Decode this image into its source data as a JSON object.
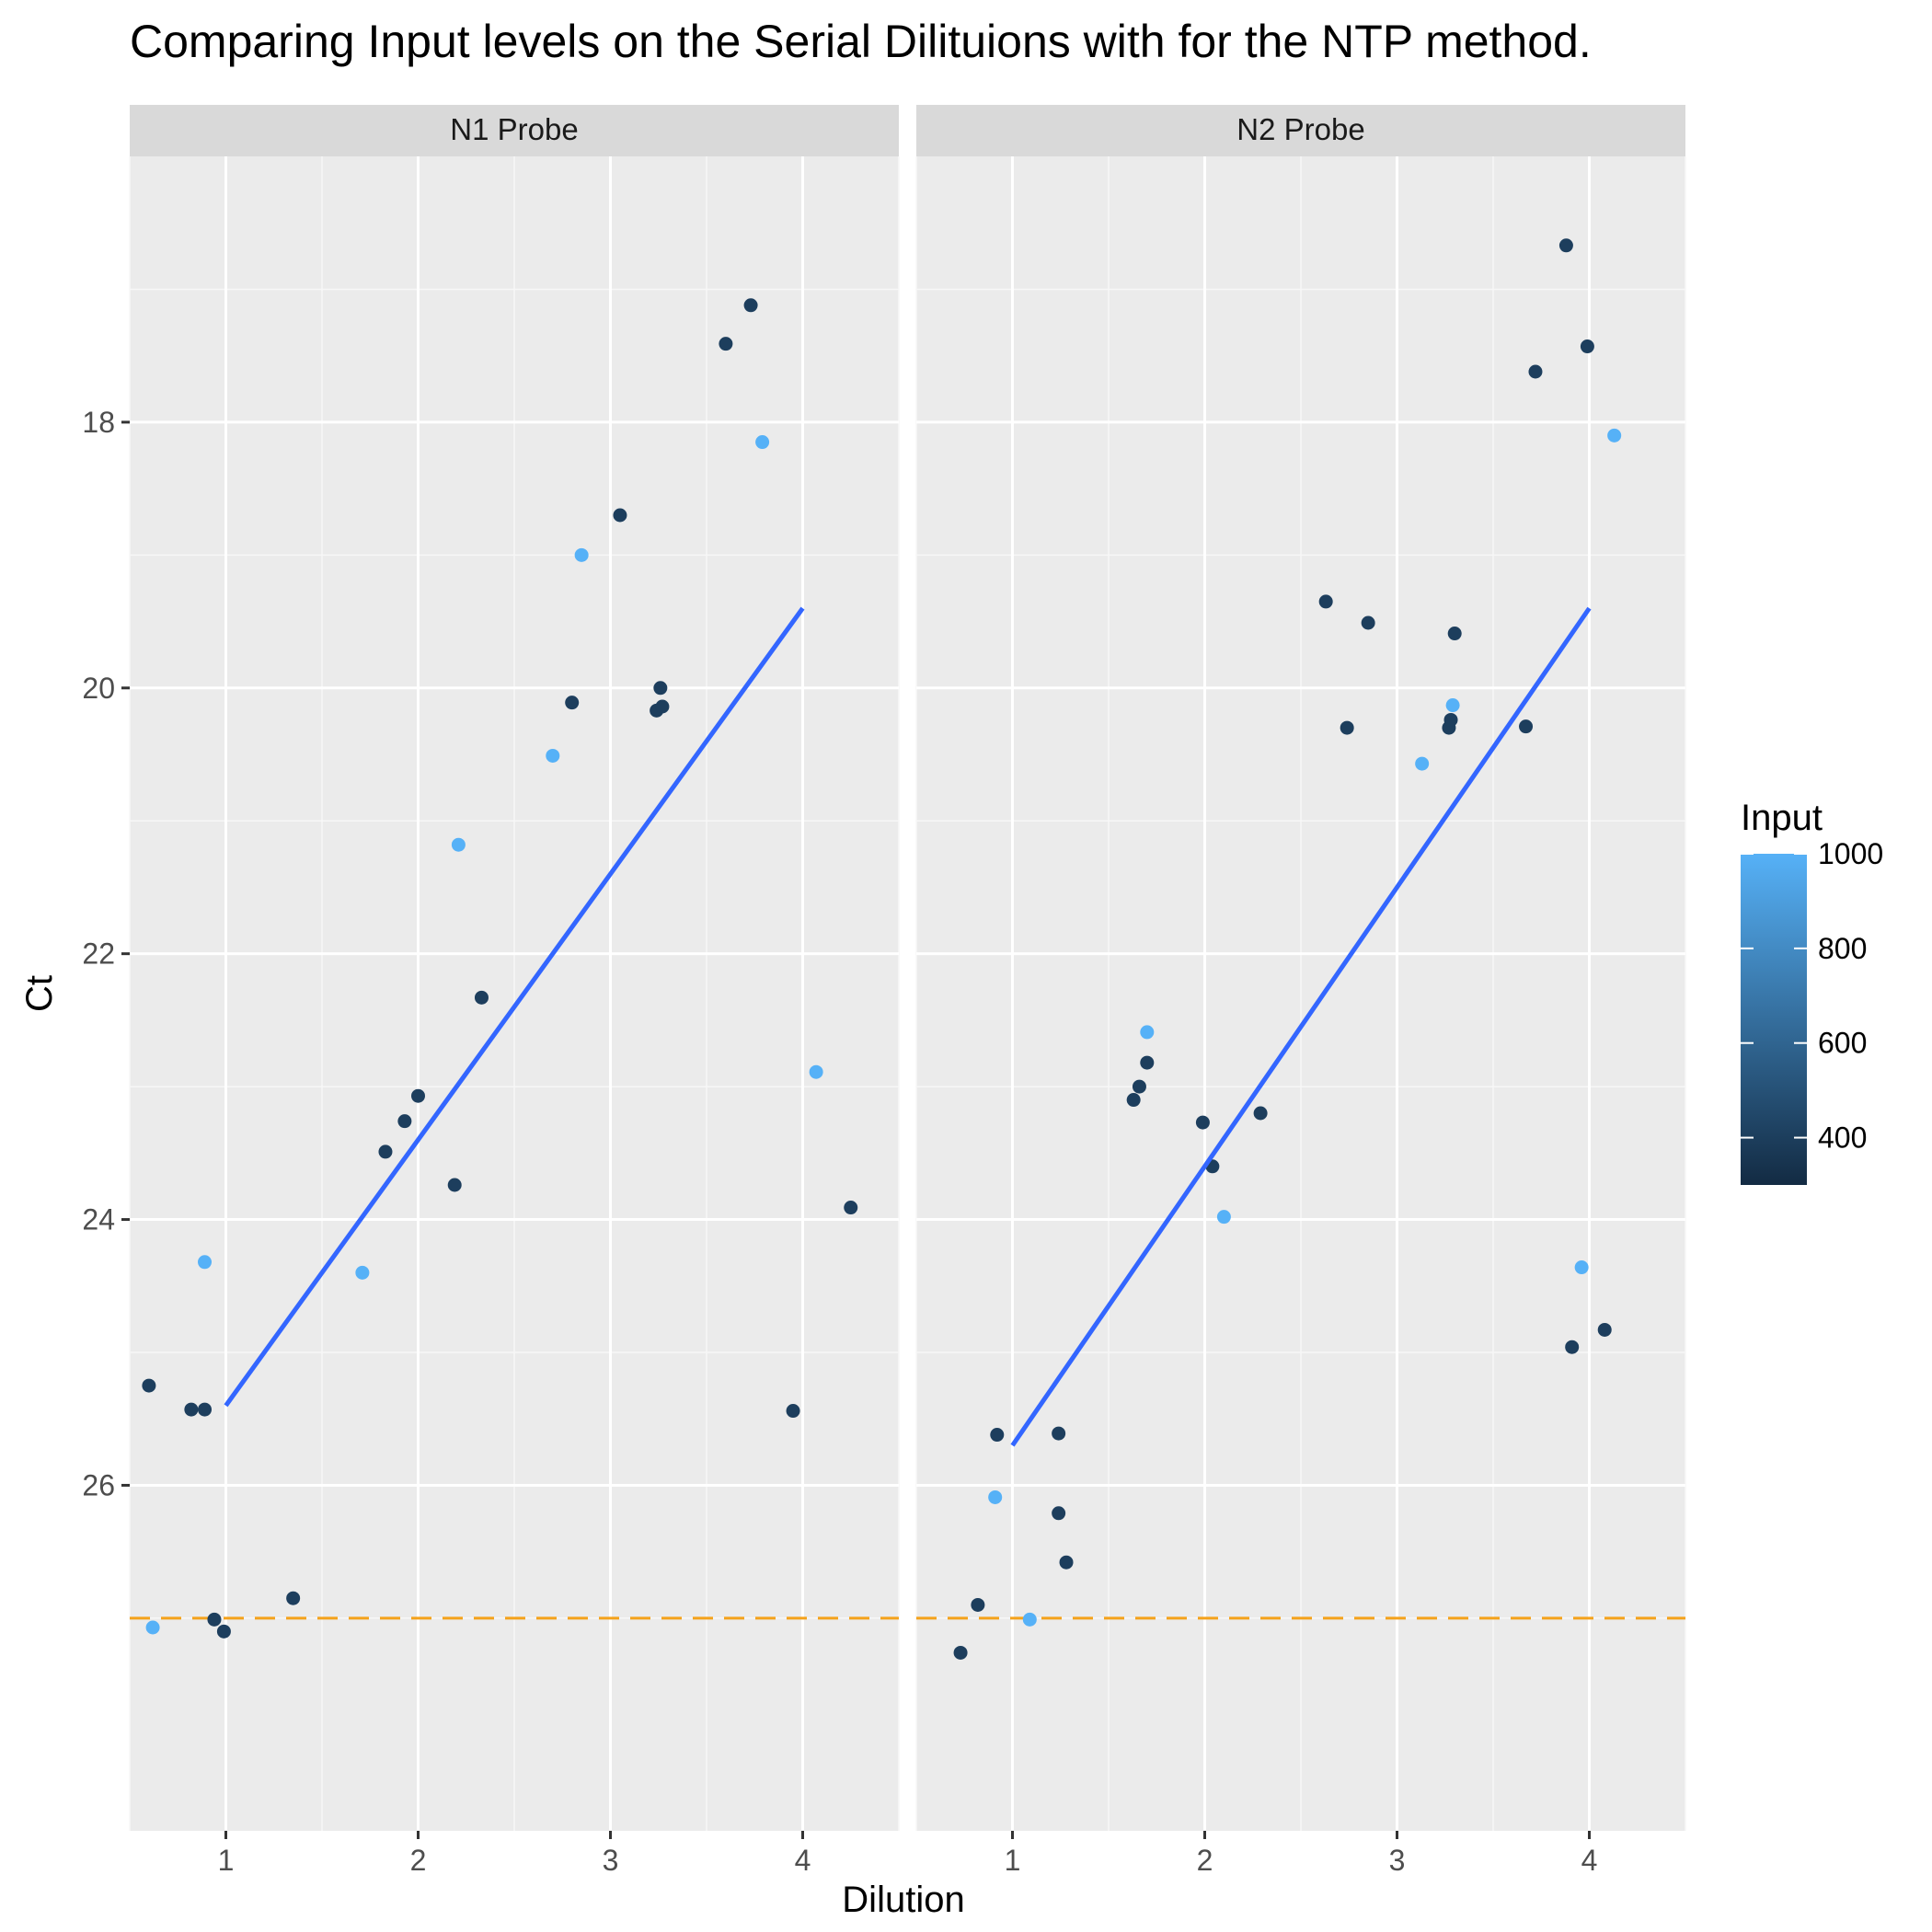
{
  "chart_data": {
    "type": "scatter",
    "title": "Comparing Input levels on the Serial Dilituions with for the NTP method.",
    "xlabel": "Dilution",
    "ylabel": "Ct",
    "xlim": [
      0.5,
      4.5
    ],
    "ylim": [
      28.6,
      16.0
    ],
    "y_reversed": true,
    "x_ticks": [
      1,
      2,
      3,
      4
    ],
    "y_ticks": [
      18,
      20,
      22,
      24,
      26
    ],
    "grid": true,
    "threshold_line": {
      "y": 27,
      "color": "#F5A21B",
      "style": "dashed"
    },
    "fit_color": "#3366FF",
    "legend": {
      "title": "Input",
      "placement": "right",
      "type": "colorbar",
      "range": [
        300,
        1000
      ],
      "ticks": [
        400,
        600,
        800,
        1000
      ],
      "low_color": "#132B43",
      "high_color": "#56B1F7"
    },
    "panels": [
      {
        "label": "N1 Probe",
        "fit": {
          "x": [
            1,
            4
          ],
          "y": [
            25.4,
            19.4
          ]
        },
        "points": [
          {
            "x": 0.6,
            "y": 25.25,
            "input": 400
          },
          {
            "x": 0.62,
            "y": 27.07,
            "input": 1000
          },
          {
            "x": 0.82,
            "y": 25.43,
            "input": 400
          },
          {
            "x": 0.89,
            "y": 25.43,
            "input": 400
          },
          {
            "x": 0.89,
            "y": 24.32,
            "input": 1000
          },
          {
            "x": 0.94,
            "y": 27.01,
            "input": 400
          },
          {
            "x": 0.99,
            "y": 27.1,
            "input": 400
          },
          {
            "x": 1.35,
            "y": 26.85,
            "input": 400
          },
          {
            "x": 1.71,
            "y": 24.4,
            "input": 1000
          },
          {
            "x": 1.83,
            "y": 23.49,
            "input": 400
          },
          {
            "x": 1.93,
            "y": 23.26,
            "input": 400
          },
          {
            "x": 2.0,
            "y": 23.07,
            "input": 400
          },
          {
            "x": 2.19,
            "y": 23.74,
            "input": 400
          },
          {
            "x": 2.21,
            "y": 21.18,
            "input": 1000
          },
          {
            "x": 2.33,
            "y": 22.33,
            "input": 400
          },
          {
            "x": 2.7,
            "y": 20.51,
            "input": 1000
          },
          {
            "x": 2.8,
            "y": 20.11,
            "input": 400
          },
          {
            "x": 2.85,
            "y": 19.0,
            "input": 1000
          },
          {
            "x": 3.05,
            "y": 18.7,
            "input": 400
          },
          {
            "x": 3.24,
            "y": 20.17,
            "input": 400
          },
          {
            "x": 3.26,
            "y": 20.0,
            "input": 400
          },
          {
            "x": 3.27,
            "y": 20.14,
            "input": 400
          },
          {
            "x": 3.6,
            "y": 17.41,
            "input": 400
          },
          {
            "x": 3.73,
            "y": 17.12,
            "input": 400
          },
          {
            "x": 3.79,
            "y": 18.15,
            "input": 1000
          },
          {
            "x": 3.95,
            "y": 25.44,
            "input": 400
          },
          {
            "x": 4.07,
            "y": 22.89,
            "input": 1000
          },
          {
            "x": 4.25,
            "y": 23.91,
            "input": 400
          }
        ]
      },
      {
        "label": "N2 Probe",
        "fit": {
          "x": [
            1,
            4
          ],
          "y": [
            25.7,
            19.4
          ]
        },
        "points": [
          {
            "x": 0.73,
            "y": 27.26,
            "input": 400
          },
          {
            "x": 0.82,
            "y": 26.9,
            "input": 400
          },
          {
            "x": 0.91,
            "y": 26.09,
            "input": 1000
          },
          {
            "x": 0.92,
            "y": 25.62,
            "input": 400
          },
          {
            "x": 1.09,
            "y": 27.01,
            "input": 1000
          },
          {
            "x": 1.24,
            "y": 25.61,
            "input": 400
          },
          {
            "x": 1.24,
            "y": 26.21,
            "input": 400
          },
          {
            "x": 1.28,
            "y": 26.58,
            "input": 400
          },
          {
            "x": 1.63,
            "y": 23.1,
            "input": 400
          },
          {
            "x": 1.66,
            "y": 23.0,
            "input": 400
          },
          {
            "x": 1.7,
            "y": 22.82,
            "input": 400
          },
          {
            "x": 1.7,
            "y": 22.59,
            "input": 1000
          },
          {
            "x": 1.99,
            "y": 23.27,
            "input": 400
          },
          {
            "x": 2.04,
            "y": 23.6,
            "input": 400
          },
          {
            "x": 2.1,
            "y": 23.98,
            "input": 1000
          },
          {
            "x": 2.29,
            "y": 23.2,
            "input": 400
          },
          {
            "x": 2.63,
            "y": 19.35,
            "input": 400
          },
          {
            "x": 2.74,
            "y": 20.3,
            "input": 400
          },
          {
            "x": 2.85,
            "y": 19.51,
            "input": 400
          },
          {
            "x": 3.13,
            "y": 20.57,
            "input": 1000
          },
          {
            "x": 3.27,
            "y": 20.3,
            "input": 400
          },
          {
            "x": 3.28,
            "y": 20.24,
            "input": 400
          },
          {
            "x": 3.29,
            "y": 20.13,
            "input": 1000
          },
          {
            "x": 3.3,
            "y": 19.59,
            "input": 400
          },
          {
            "x": 3.67,
            "y": 20.29,
            "input": 400
          },
          {
            "x": 3.72,
            "y": 17.62,
            "input": 400
          },
          {
            "x": 3.88,
            "y": 16.67,
            "input": 400
          },
          {
            "x": 3.91,
            "y": 24.96,
            "input": 400
          },
          {
            "x": 3.96,
            "y": 24.36,
            "input": 1000
          },
          {
            "x": 3.99,
            "y": 17.43,
            "input": 400
          },
          {
            "x": 4.08,
            "y": 24.83,
            "input": 400
          },
          {
            "x": 4.13,
            "y": 18.1,
            "input": 1000
          }
        ]
      }
    ]
  }
}
